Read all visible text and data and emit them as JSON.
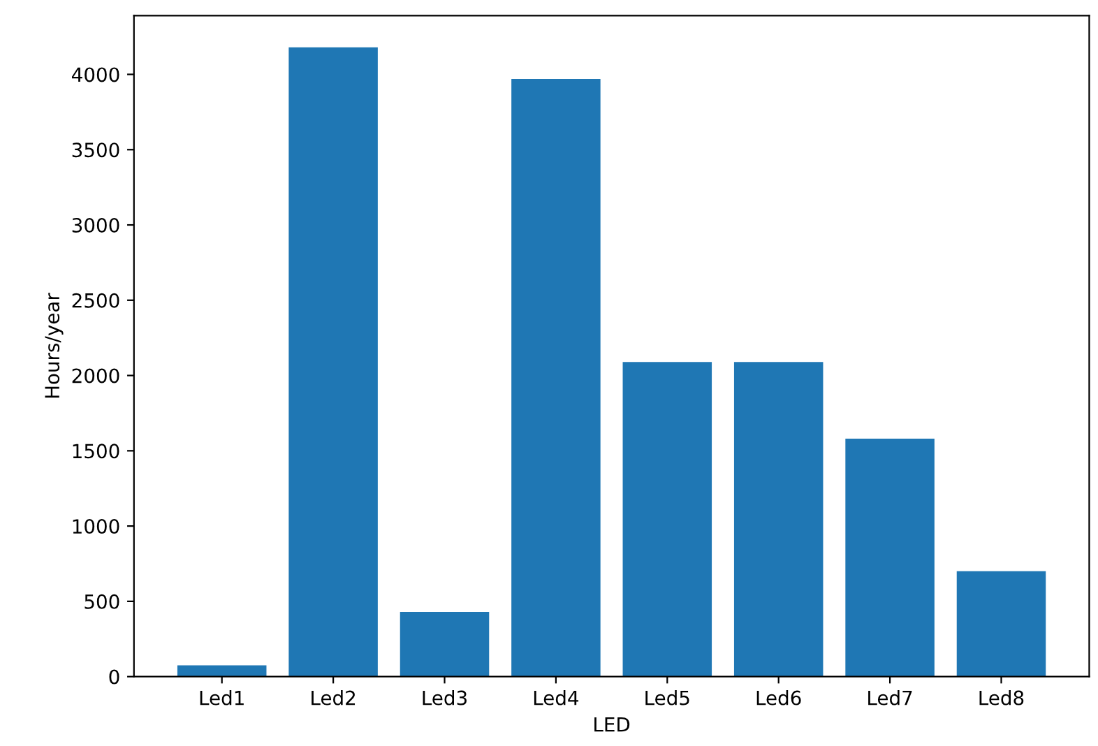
{
  "chart_data": {
    "type": "bar",
    "xlabel": "LED",
    "ylabel": "Hours/year",
    "categories": [
      "Led1",
      "Led2",
      "Led3",
      "Led4",
      "Led5",
      "Led6",
      "Led7",
      "Led8"
    ],
    "values": [
      75,
      4180,
      430,
      3970,
      2090,
      2090,
      1580,
      700
    ],
    "color": "#1f77b4",
    "ylim": [
      0,
      4390
    ],
    "yticks": [
      0,
      500,
      1000,
      1500,
      2000,
      2500,
      3000,
      3500,
      4000
    ],
    "grid": false
  }
}
